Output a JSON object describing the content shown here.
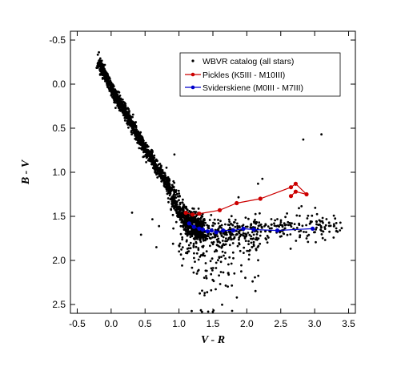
{
  "chart_data": {
    "type": "scatter",
    "title": "",
    "xlabel": "V - R",
    "ylabel": "B - V",
    "xlim": [
      -0.6,
      3.6
    ],
    "ylim": [
      -0.6,
      2.6
    ],
    "y_inverted": true,
    "grid": false,
    "legend_position": "top-right",
    "x_ticks": [
      "-0.5",
      "0.0",
      "0.5",
      "1.0",
      "1.5",
      "2.0",
      "2.5",
      "3.0",
      "3.5"
    ],
    "y_ticks": [
      "-0.5",
      "0.0",
      "0.5",
      "1.0",
      "1.5",
      "2.0",
      "2.5"
    ],
    "legend": [
      {
        "label": "WBVR catalog (all stars)",
        "color": "#000000",
        "marker": "dot"
      },
      {
        "label": "Pickles (K5III - M10III)",
        "color": "#cc0000",
        "marker": "line-circle"
      },
      {
        "label": "Sviderskiene (M0III - M7III)",
        "color": "#0000cc",
        "marker": "line-circle"
      }
    ],
    "series": [
      {
        "name": "WBVR catalog (all stars)",
        "color": "#000000",
        "description_points": "dense locus",
        "locus": [
          [
            -0.18,
            -0.25
          ],
          [
            0.0,
            0.05
          ],
          [
            0.2,
            0.3
          ],
          [
            0.4,
            0.6
          ],
          [
            0.6,
            0.85
          ],
          [
            0.8,
            1.1
          ],
          [
            0.95,
            1.35
          ],
          [
            1.1,
            1.55
          ],
          [
            1.3,
            1.65
          ],
          [
            1.5,
            1.68
          ],
          [
            2.0,
            1.65
          ],
          [
            2.5,
            1.62
          ],
          [
            3.0,
            1.62
          ],
          [
            3.3,
            1.62
          ]
        ]
      },
      {
        "name": "Pickles (K5III - M10III)",
        "color": "#cc0000",
        "x": [
          1.1,
          1.2,
          1.3,
          1.6,
          1.85,
          2.2,
          2.65,
          2.72,
          2.88,
          2.72,
          2.65
        ],
        "y": [
          1.46,
          1.48,
          1.47,
          1.43,
          1.35,
          1.3,
          1.17,
          1.13,
          1.25,
          1.22,
          1.27
        ]
      },
      {
        "name": "Sviderskiene (M0III - M7III)",
        "color": "#0000cc",
        "x": [
          1.15,
          1.22,
          1.3,
          1.35,
          1.42,
          1.48,
          1.55,
          1.65,
          1.8,
          1.95,
          2.1,
          2.45,
          2.97
        ],
        "y": [
          1.58,
          1.62,
          1.64,
          1.65,
          1.67,
          1.66,
          1.68,
          1.66,
          1.66,
          1.64,
          1.65,
          1.66,
          1.64
        ]
      }
    ]
  }
}
